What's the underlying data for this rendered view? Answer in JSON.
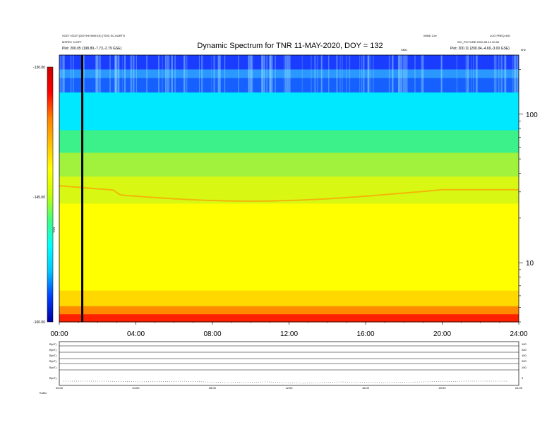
{
  "header": {
    "left_line1": "SCET=SCET(DOY,HH:MM:SS) (TDS) SC-EARTH",
    "left_line2": "MSPEC 3 DIFF",
    "left_line3": "Plot: 200.05 (198.89,-7.73,-2.79 GSE)",
    "right_line1": "WIND 3-hr",
    "right_line2": "LOG FREQ=NO",
    "right_line3": "Plot: 200.11 (200.04,-4.69,-3.00 GSE)",
    "right_small1": "SCI_PICTURE 2020-05-12 00:00",
    "right_small2": "SMU",
    "right_small3": "kHz"
  },
  "chart_data": {
    "type": "heatmap",
    "title": "Dynamic Spectrum for TNR 11-MAY-2020, DOY = 132",
    "x_tick_labels": [
      "00:00",
      "04:00",
      "08:00",
      "12:00",
      "16:00",
      "20:00",
      "24:00"
    ],
    "xlim_hours": [
      0,
      24
    ],
    "y_tick_labels_right": [
      "100",
      "10"
    ],
    "y_scale": "log",
    "ylim_khz": [
      4,
      250
    ],
    "colorbar": {
      "label": "TNR",
      "tick_labels": [
        "-130.00",
        "-145.00",
        "-160.00"
      ],
      "range": [
        -160,
        -130
      ],
      "colors": [
        "#0000a0",
        "#0040ff",
        "#00c8ff",
        "#00ffff",
        "#40ff80",
        "#c8ff00",
        "#ffff00",
        "#ffc000",
        "#ff8000",
        "#ff0000",
        "#c80000"
      ]
    },
    "bands": [
      {
        "khz_top": 250,
        "khz_bottom": 200,
        "color": "#1a3cff"
      },
      {
        "khz_top": 200,
        "khz_bottom": 175,
        "color": "#2a98ff"
      },
      {
        "khz_top": 175,
        "khz_bottom": 140,
        "color": "#1560ff"
      },
      {
        "khz_top": 140,
        "khz_bottom": 78,
        "color": "#00e8ff"
      },
      {
        "khz_top": 78,
        "khz_bottom": 55,
        "color": "#3cf08a"
      },
      {
        "khz_top": 55,
        "khz_bottom": 38,
        "color": "#a0f23c"
      },
      {
        "khz_top": 38,
        "khz_bottom": 25,
        "color": "#d8f814"
      },
      {
        "khz_top": 25,
        "khz_bottom": 6.5,
        "color": "#ffff00"
      },
      {
        "khz_top": 6.5,
        "khz_bottom": 5.1,
        "color": "#ffd800"
      },
      {
        "khz_top": 5.1,
        "khz_bottom": 4.5,
        "color": "#ff8a00"
      },
      {
        "khz_top": 4.5,
        "khz_bottom": 4,
        "color": "#ff2000"
      }
    ],
    "marker_line_hour": 1.2
  },
  "lower_panels": {
    "left_labels": [
      "B(nT)",
      "B(nT)",
      "B(nT)",
      "B(nT)",
      "B(nT)",
      "B(nT)"
    ],
    "bottom_left": "Kotec",
    "right_labels": [
      "100",
      "200",
      "100",
      "200",
      "100",
      "0"
    ],
    "x_tick_labels": [
      "00:00",
      "04:00",
      "08:00",
      "12:00",
      "16:00",
      "20:00",
      "24:00"
    ]
  }
}
